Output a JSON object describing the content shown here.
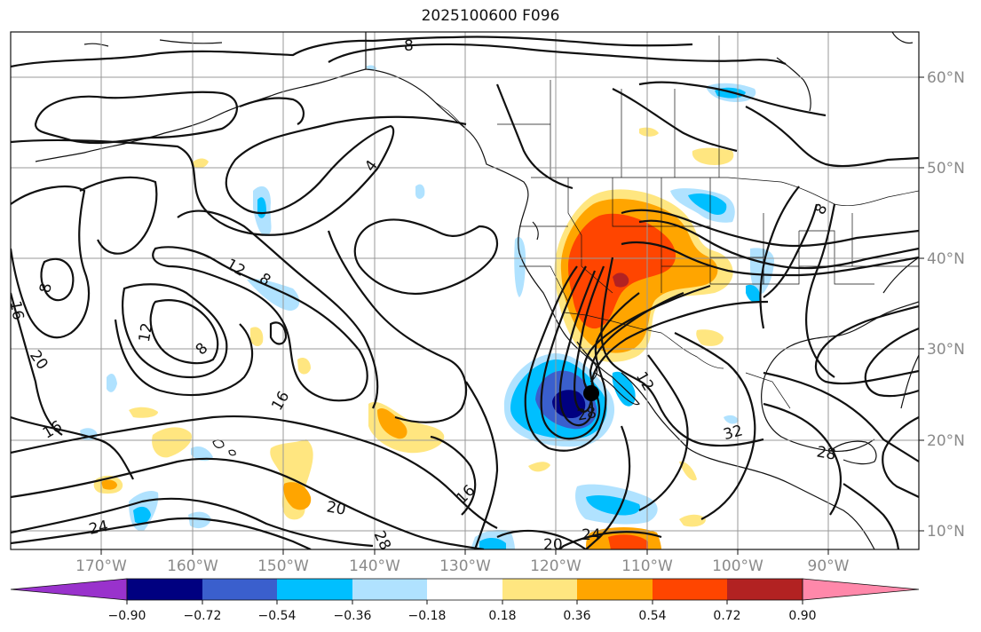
{
  "title": "2025100600 F096",
  "map": {
    "latitude_labels": [
      "60°N",
      "50°N",
      "40°N",
      "30°N",
      "20°N",
      "10°N"
    ],
    "longitude_labels": [
      "170°W",
      "160°W",
      "150°W",
      "140°W",
      "130°W",
      "120°W",
      "110°W",
      "100°W",
      "90°W"
    ],
    "contour_labels": [
      "8",
      "4",
      "8",
      "12",
      "8",
      "16",
      "12",
      "8",
      "20",
      "16",
      "16",
      "20",
      "24",
      "28",
      "24",
      "20",
      "16",
      "32",
      "28",
      "28",
      "12",
      "8"
    ],
    "storm_marker": "tropical-cyclone-center"
  },
  "colorbar": {
    "tick_labels": [
      "−0.90",
      "−0.72",
      "−0.54",
      "−0.36",
      "−0.18",
      "0.18",
      "0.36",
      "0.54",
      "0.72",
      "0.90"
    ],
    "colors": [
      "#9932cc",
      "#000080",
      "#3a5fcd",
      "#00bfff",
      "#b0e2ff",
      "#ffffff",
      "#ffe680",
      "#ffa500",
      "#ff4500",
      "#b22222",
      "#ff88aa"
    ]
  },
  "colors": {
    "grid": "#999999",
    "contour": "#111111",
    "axis_labels": "#8a8a8a"
  }
}
